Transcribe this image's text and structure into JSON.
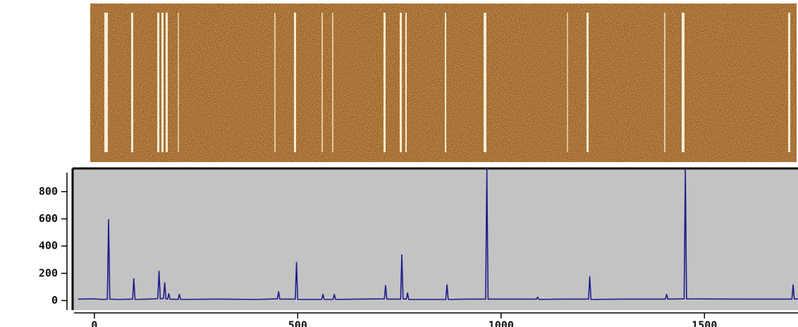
{
  "chart_data": {
    "type": "line",
    "x": [
      -40,
      0,
      20,
      32,
      35,
      38,
      60,
      94,
      97,
      100,
      130,
      150,
      156,
      159,
      162,
      170,
      173,
      176,
      180,
      183,
      186,
      206,
      209,
      212,
      300,
      400,
      450,
      453,
      456,
      494,
      497,
      500,
      559,
      562,
      565,
      587,
      590,
      593,
      650,
      713,
      716,
      719,
      753,
      756,
      759,
      767,
      770,
      773,
      864,
      867,
      870,
      920,
      962,
      965,
      968,
      1087,
      1090,
      1093,
      1150,
      1215,
      1218,
      1221,
      1300,
      1404,
      1407,
      1410,
      1450,
      1453,
      1456,
      1600,
      1715,
      1718,
      1721,
      1730
    ],
    "series": [
      {
        "color": "#1c1c8a",
        "values": [
          10,
          12,
          8,
          10,
          595,
          10,
          8,
          10,
          160,
          8,
          10,
          12,
          15,
          215,
          12,
          15,
          130,
          12,
          10,
          50,
          10,
          8,
          45,
          8,
          10,
          8,
          12,
          65,
          10,
          10,
          280,
          8,
          8,
          45,
          8,
          8,
          45,
          8,
          10,
          12,
          110,
          10,
          10,
          335,
          12,
          10,
          55,
          8,
          8,
          115,
          8,
          10,
          10,
          960,
          10,
          10,
          25,
          8,
          10,
          10,
          175,
          8,
          10,
          10,
          45,
          10,
          12,
          960,
          12,
          10,
          10,
          115,
          10,
          12
        ]
      }
    ],
    "xlim": [
      -50,
      1730
    ],
    "ylim": [
      -60,
      960
    ],
    "xticks": [
      0,
      500,
      1000,
      1500
    ],
    "yticks": [
      0,
      200,
      400,
      600,
      800
    ]
  }
}
